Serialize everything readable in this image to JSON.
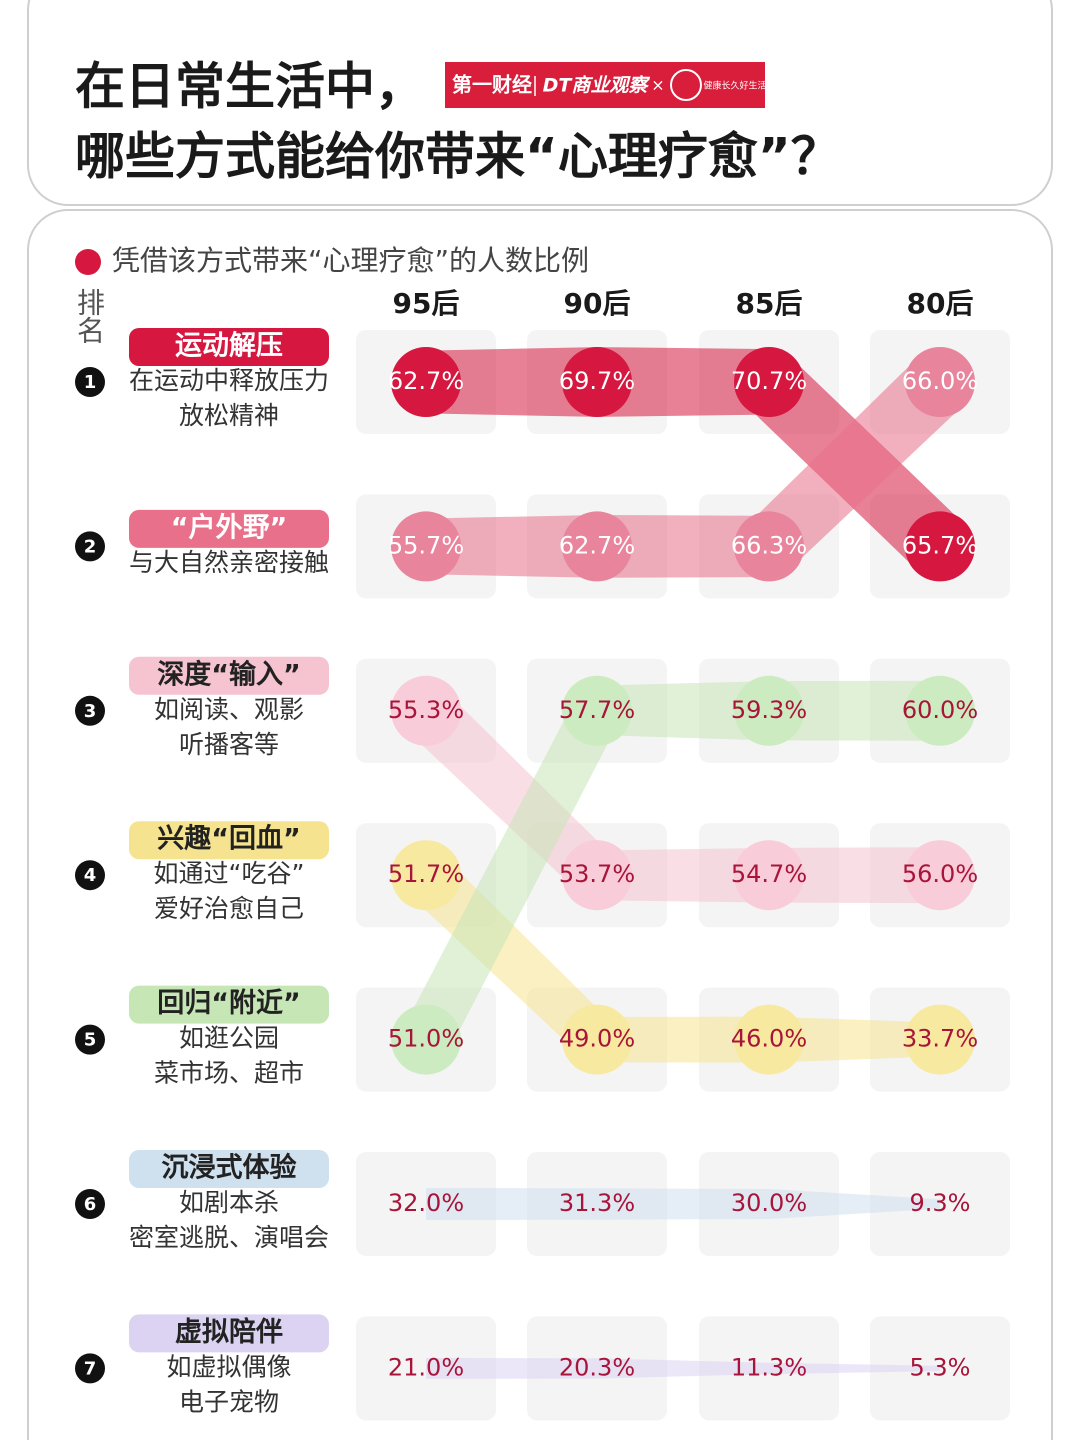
{
  "title": [
    "在日常生活中，",
    "哪些方式能给你带来“心理疗愈”？"
  ],
  "logos": [
    "第一财经",
    "DT商业观察",
    "×",
    "健康长久好生活"
  ],
  "chart_data": {
    "type": "bump",
    "legend": "凭借该方式带来“心理疗愈”的人数比例",
    "rank_header": "排名",
    "categories": [
      "95后",
      "90后",
      "85后",
      "80后"
    ],
    "series": [
      {
        "rank": 1,
        "name": "运动解压",
        "desc": [
          "在运动中释放压力",
          "放松精神"
        ],
        "color": "#d6173f",
        "marker_color": "#d6173f",
        "label_color": "#ffffff",
        "values": [
          62.7,
          69.7,
          70.7,
          65.7
        ],
        "value_labels": [
          "62.7%",
          "69.7%",
          "70.7%",
          "65.7%"
        ]
      },
      {
        "rank": 2,
        "name": "“户外野”",
        "desc": [
          "与大自然亲密接触"
        ],
        "color": "#e8708a",
        "marker_color": "#e8849c",
        "label_color": "#ffffff",
        "values": [
          55.7,
          62.7,
          66.3,
          66.0
        ],
        "value_labels": [
          "55.7%",
          "62.7%",
          "66.3%",
          "66.0%"
        ]
      },
      {
        "rank": 3,
        "name": "深度“输入”",
        "desc": [
          "如阅读、观影",
          "听播客等"
        ],
        "color": "#f6c3d1",
        "marker_color": "#f8ccd8",
        "label_color": "#a8143a",
        "values": [
          55.3,
          53.7,
          54.7,
          56.0
        ],
        "value_labels": [
          "55.3%",
          "53.7%",
          "54.7%",
          "56.0%"
        ]
      },
      {
        "rank": 4,
        "name": "兴趣“回血”",
        "desc": [
          "如通过“吃谷”",
          "爱好治愈自己"
        ],
        "color": "#f5e38f",
        "marker_color": "#f7e9a0",
        "label_color": "#a8143a",
        "values": [
          51.7,
          49.0,
          46.0,
          33.7
        ],
        "value_labels": [
          "51.7%",
          "49.0%",
          "46.0%",
          "33.7%"
        ]
      },
      {
        "rank": 5,
        "name": "回归“附近”",
        "desc": [
          "如逛公园",
          "菜市场、超市"
        ],
        "color": "#c6e6b6",
        "marker_color": "#cdebc0",
        "label_color": "#a8143a",
        "values": [
          51.0,
          57.7,
          59.3,
          60.0
        ],
        "value_labels": [
          "51.0%",
          "57.7%",
          "59.3%",
          "60.0%"
        ]
      },
      {
        "rank": 6,
        "name": "沉浸式体验",
        "desc": [
          "如剧本杀",
          "密室逃脱、演唱会"
        ],
        "color": "#cfe0ee",
        "label_color": "#a8143a",
        "values": [
          32.0,
          31.3,
          30.0,
          9.3
        ],
        "value_labels": [
          "32.0%",
          "31.3%",
          "30.0%",
          "9.3%"
        ]
      },
      {
        "rank": 7,
        "name": "虚拟陪伴",
        "desc": [
          "如虚拟偶像",
          "电子宠物"
        ],
        "color": "#dcd3f2",
        "label_color": "#a8143a",
        "values": [
          21.0,
          20.3,
          11.3,
          5.3
        ],
        "value_labels": [
          "21.0%",
          "20.3%",
          "11.3%",
          "5.3%"
        ]
      }
    ]
  }
}
